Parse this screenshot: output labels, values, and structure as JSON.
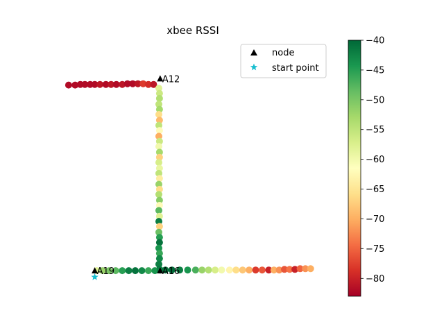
{
  "chart_data": {
    "type": "scatter",
    "title": "xbee RSSI",
    "xlabel": "",
    "ylabel": "",
    "grid": false,
    "axes_visible": false,
    "legend": {
      "position": "top-right",
      "entries": [
        {
          "label": "node",
          "marker": "black-triangle"
        },
        {
          "label": "start point",
          "marker": "cyan-star"
        }
      ]
    },
    "colorbar": {
      "colormap": "RdYlGn",
      "range": [
        -83,
        -40
      ],
      "ticks": [
        "-40",
        "-45",
        "-50",
        "-55",
        "-60",
        "-65",
        "-70",
        "-75",
        "-80"
      ]
    },
    "xlim": [
      -0.6,
      3.6
    ],
    "ylim": [
      -0.4,
      3.6
    ],
    "nodes": [
      {
        "label": "A12",
        "x": 1,
        "y": 3
      },
      {
        "label": "A19",
        "x": 0,
        "y": 0
      },
      {
        "label": "A16",
        "x": 1,
        "y": 0
      }
    ],
    "start_point": {
      "x": 0,
      "y": -0.1
    },
    "series": [
      {
        "segment": "top-left arm",
        "x": [
          -0.4,
          -0.3,
          -0.22,
          -0.15,
          -0.07,
          0.0,
          0.08,
          0.17,
          0.25,
          0.33,
          0.42,
          0.5,
          0.58,
          0.66,
          0.74,
          0.82,
          0.9
        ],
        "y": [
          2.9,
          2.9,
          2.91,
          2.91,
          2.91,
          2.91,
          2.91,
          2.91,
          2.91,
          2.91,
          2.91,
          2.92,
          2.92,
          2.92,
          2.92,
          2.91,
          2.91
        ],
        "rssi": [
          -82,
          -82,
          -82,
          -82,
          -82,
          -82,
          -81,
          -82,
          -81,
          -82,
          -81,
          -82,
          -82,
          -81,
          -78,
          -79,
          -81
        ]
      },
      {
        "segment": "vertical corridor",
        "x": [
          0.98,
          0.99,
          0.99,
          0.98,
          0.99,
          0.98,
          0.99,
          0.98,
          0.99,
          0.98,
          0.99,
          0.98,
          0.99,
          0.99,
          0.98,
          0.99,
          0.98,
          0.99,
          0.98,
          0.99,
          0.98,
          0.99,
          0.99,
          0.98,
          0.99,
          0.98,
          0.99,
          0.98,
          0.99,
          0.99,
          0.98,
          0.99,
          0.99,
          0.98,
          0.99
        ],
        "y": [
          2.85,
          2.77,
          2.69,
          2.6,
          2.52,
          2.44,
          2.35,
          2.27,
          2.19,
          2.1,
          2.02,
          1.94,
          1.85,
          1.77,
          1.69,
          1.6,
          1.52,
          1.44,
          1.35,
          1.27,
          1.19,
          1.1,
          1.02,
          0.94,
          0.85,
          0.77,
          0.69,
          0.6,
          0.52,
          0.44,
          0.35,
          0.27,
          0.19,
          0.1,
          0.02
        ],
        "rssi": [
          -58,
          -56,
          -54,
          -55,
          -53,
          -66,
          -69,
          -55,
          -62,
          -70,
          -56,
          -60,
          -53,
          -67,
          -57,
          -59,
          -55,
          -64,
          -52,
          -66,
          -54,
          -51,
          -62,
          -48,
          -58,
          -42,
          -67,
          -49,
          -45,
          -41,
          -44,
          -46,
          -43,
          -42,
          -41
        ]
      },
      {
        "segment": "bottom corridor",
        "x": [
          0.03,
          0.12,
          0.22,
          0.32,
          0.42,
          0.52,
          0.62,
          0.72,
          0.82,
          0.92,
          1.0,
          1.08,
          1.18,
          1.3,
          1.42,
          1.54,
          1.64,
          1.74,
          1.84,
          1.94,
          2.06,
          2.16,
          2.26,
          2.36,
          2.46,
          2.56,
          2.66,
          2.74,
          2.82,
          2.9,
          2.98,
          3.06,
          3.14,
          3.22,
          3.3
        ],
        "y": [
          0.0,
          0.0,
          0.0,
          0.0,
          0.0,
          0.0,
          0.0,
          0.0,
          0.0,
          0.0,
          0.01,
          0.01,
          0.01,
          0.01,
          0.01,
          0.01,
          0.01,
          0.01,
          0.01,
          0.01,
          0.01,
          0.01,
          0.01,
          0.01,
          0.01,
          0.01,
          0.01,
          0.01,
          0.01,
          0.02,
          0.02,
          0.02,
          0.03,
          0.03,
          0.03
        ],
        "rssi": [
          -58,
          -52,
          -50,
          -48,
          -45,
          -42,
          -41,
          -43,
          -46,
          -44,
          -42,
          -41,
          -40,
          -42,
          -44,
          -47,
          -52,
          -54,
          -57,
          -60,
          -63,
          -66,
          -68,
          -70,
          -78,
          -76,
          -80,
          -70,
          -72,
          -76,
          -74,
          -80,
          -75,
          -72,
          -70
        ]
      }
    ]
  }
}
